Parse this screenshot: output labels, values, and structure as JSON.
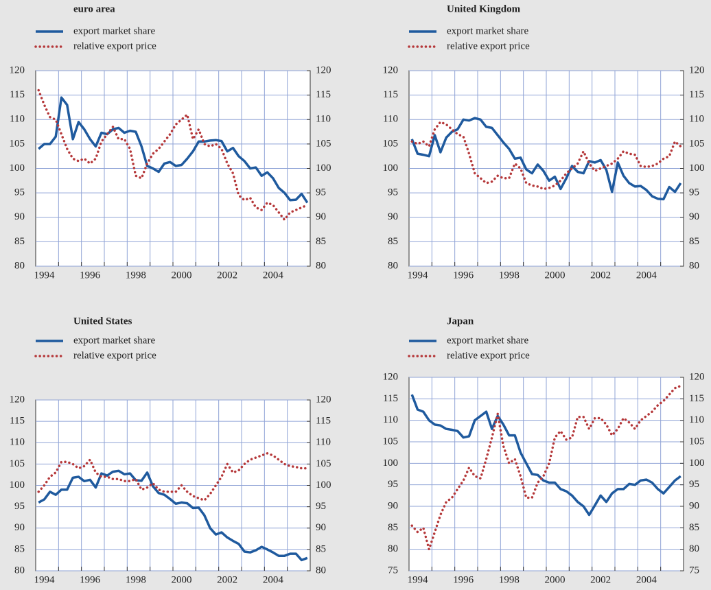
{
  "chart_data": [
    {
      "type": "line",
      "title": "euro area",
      "categories": [
        null,
        "1994",
        null,
        null,
        null,
        null,
        null,
        null,
        null,
        "1996",
        null,
        null,
        null,
        null,
        null,
        null,
        null,
        "1998",
        null,
        null,
        null,
        null,
        null,
        null,
        null,
        "2000",
        null,
        null,
        null,
        null,
        null,
        null,
        null,
        "2002",
        null,
        null,
        null,
        null,
        null,
        null,
        null,
        "2004",
        null,
        null,
        null,
        null,
        null,
        null
      ],
      "series": [
        {
          "name": "export market share",
          "color": "#1f5a9e",
          "style": "solid",
          "values": [
            104,
            105,
            105,
            106.5,
            114.5,
            113,
            106,
            109.5,
            108,
            106,
            104.5,
            107.3,
            107,
            108,
            108.3,
            107.3,
            107.7,
            107.5,
            104.5,
            100.5,
            100,
            99.3,
            101,
            101.3,
            100.5,
            100.7,
            102,
            103.5,
            105.5,
            105.5,
            105.7,
            105.8,
            105.6,
            103.5,
            104.2,
            102.5,
            101.5,
            100,
            100.2,
            98.5,
            99.2,
            98,
            96,
            95,
            93.5,
            93.6,
            94.8,
            93
          ]
        },
        {
          "name": "relative export price",
          "color": "#b5383a",
          "style": "dotted",
          "values": [
            116,
            113,
            110.5,
            110,
            107,
            104,
            102,
            101.5,
            102,
            101,
            102,
            105.5,
            107,
            108.5,
            106,
            106,
            104,
            98.5,
            98,
            101,
            103,
            104,
            105.5,
            107,
            109,
            110,
            111,
            106,
            108,
            105,
            104.5,
            105,
            104,
            101,
            99,
            94.5,
            93.5,
            94,
            92,
            91.5,
            93,
            92.5,
            91,
            89.5,
            91,
            91.5,
            92,
            92.5
          ]
        }
      ],
      "ylim": [
        80,
        120
      ],
      "yticks": [
        80,
        85,
        90,
        95,
        100,
        105,
        110,
        115,
        120
      ],
      "y2lim": [
        80,
        120
      ],
      "y2ticks": [
        80,
        85,
        90,
        95,
        100,
        105,
        110,
        115,
        120
      ],
      "grid": true
    },
    {
      "type": "line",
      "title": "United Kingdom",
      "categories": [
        null,
        "1994",
        null,
        null,
        null,
        null,
        null,
        null,
        null,
        "1996",
        null,
        null,
        null,
        null,
        null,
        null,
        null,
        "1998",
        null,
        null,
        null,
        null,
        null,
        null,
        null,
        "2000",
        null,
        null,
        null,
        null,
        null,
        null,
        null,
        "2002",
        null,
        null,
        null,
        null,
        null,
        null,
        null,
        "2004",
        null,
        null,
        null,
        null,
        null,
        null
      ],
      "series": [
        {
          "name": "export market share",
          "color": "#1f5a9e",
          "style": "solid",
          "values": [
            106,
            103,
            102.8,
            102.5,
            106.8,
            103.3,
            106.3,
            107.5,
            108,
            110,
            109.8,
            110.3,
            110,
            108.5,
            108.3,
            106.8,
            105.3,
            104,
            102,
            102.2,
            99.8,
            99,
            100.8,
            99.5,
            97.5,
            98.3,
            95.8,
            98,
            100.5,
            99.3,
            99,
            101.5,
            101.2,
            101.7,
            99.7,
            95.2,
            101.2,
            98.5,
            97,
            96.3,
            96.4,
            95.6,
            94.3,
            93.8,
            93.7,
            96.2,
            95.2,
            97
          ]
        },
        {
          "name": "relative export price",
          "color": "#b5383a",
          "style": "dotted",
          "values": [
            105.5,
            105,
            105.5,
            104.5,
            108,
            109.5,
            109,
            108,
            107,
            106.5,
            103,
            99,
            98,
            97,
            97.3,
            98.5,
            98,
            98,
            101,
            100,
            97,
            96.5,
            96.3,
            95.8,
            96,
            96.5,
            97.5,
            99,
            100,
            101,
            103.5,
            101,
            99.5,
            100,
            100.5,
            101,
            102,
            103.5,
            103,
            102.8,
            100.5,
            100.3,
            100.5,
            101,
            102,
            102.5,
            105.5,
            104.5
          ]
        }
      ],
      "ylim": [
        80,
        120
      ],
      "yticks": [
        80,
        85,
        90,
        95,
        100,
        105,
        110,
        115,
        120
      ],
      "y2lim": [
        80,
        120
      ],
      "y2ticks": [
        80,
        85,
        90,
        95,
        100,
        105,
        110,
        115,
        120
      ],
      "grid": true
    },
    {
      "type": "line",
      "title": "United States",
      "categories": [
        null,
        "1994",
        null,
        null,
        null,
        null,
        null,
        null,
        null,
        "1996",
        null,
        null,
        null,
        null,
        null,
        null,
        null,
        "1998",
        null,
        null,
        null,
        null,
        null,
        null,
        null,
        "2000",
        null,
        null,
        null,
        null,
        null,
        null,
        null,
        "2002",
        null,
        null,
        null,
        null,
        null,
        null,
        null,
        "2004",
        null,
        null,
        null,
        null,
        null,
        null
      ],
      "series": [
        {
          "name": "export market share",
          "color": "#1f5a9e",
          "style": "solid",
          "values": [
            96,
            96.7,
            98.5,
            97.8,
            99,
            99,
            101.8,
            102,
            101,
            101.3,
            99.5,
            102.8,
            102.3,
            103.2,
            103.4,
            102.6,
            102.8,
            101.2,
            101.1,
            103,
            99.8,
            98.2,
            97.8,
            96.8,
            95.7,
            96,
            95.8,
            94.7,
            94.8,
            93,
            90,
            88.5,
            89,
            87.8,
            87,
            86.3,
            84.5,
            84.3,
            84.8,
            85.6,
            85,
            84.3,
            83.5,
            83.5,
            84,
            84,
            82.5,
            83
          ]
        },
        {
          "name": "relative export price",
          "color": "#b5383a",
          "style": "dotted",
          "values": [
            98.5,
            100,
            102,
            103,
            105.5,
            105.5,
            105,
            104,
            104.5,
            106,
            103,
            102,
            102,
            101.5,
            101.5,
            101,
            101,
            101.5,
            99,
            99.5,
            100.5,
            99,
            98.5,
            98.5,
            98.5,
            100,
            98.5,
            97.5,
            97,
            96.5,
            98,
            100,
            102,
            105,
            103,
            103.5,
            105,
            106,
            106.5,
            107,
            107.5,
            107,
            106,
            105,
            104.5,
            104.3,
            104,
            104
          ]
        }
      ],
      "ylim": [
        80,
        120
      ],
      "yticks": [
        80,
        85,
        90,
        95,
        100,
        105,
        110,
        115,
        120
      ],
      "y2lim": [
        80,
        120
      ],
      "y2ticks": [
        80,
        85,
        90,
        95,
        100,
        105,
        110,
        115,
        120
      ],
      "grid": true
    },
    {
      "type": "line",
      "title": "Japan",
      "categories": [
        null,
        "1994",
        null,
        null,
        null,
        null,
        null,
        null,
        null,
        "1996",
        null,
        null,
        null,
        null,
        null,
        null,
        null,
        "1998",
        null,
        null,
        null,
        null,
        null,
        null,
        null,
        "2000",
        null,
        null,
        null,
        null,
        null,
        null,
        null,
        "2002",
        null,
        null,
        null,
        null,
        null,
        null,
        null,
        "2004",
        null,
        null,
        null,
        null,
        null,
        null
      ],
      "series": [
        {
          "name": "export market share",
          "color": "#1f5a9e",
          "style": "solid",
          "values": [
            116,
            112.5,
            112,
            110,
            109,
            108.8,
            108,
            107.8,
            107.5,
            106,
            106.3,
            110,
            111,
            112,
            108,
            111,
            109,
            106.5,
            106.5,
            102.5,
            100,
            97.5,
            97.3,
            96,
            95.5,
            95.5,
            94,
            93.5,
            92.5,
            91,
            90,
            88,
            90.2,
            92.5,
            91,
            93,
            94,
            94,
            95.2,
            95,
            96,
            96.2,
            95.5,
            94,
            93,
            94.5,
            96,
            97
          ]
        },
        {
          "name": "relative export price",
          "color": "#b5383a",
          "style": "dotted",
          "values": [
            85.5,
            84,
            85,
            80,
            84,
            88,
            91,
            92,
            94,
            96,
            99,
            97,
            96.5,
            101,
            106,
            111.5,
            104,
            100,
            101,
            97,
            92,
            92,
            95.5,
            97,
            100,
            106,
            107.5,
            105.5,
            106,
            110.8,
            110.8,
            108,
            110.5,
            110.5,
            109,
            106.5,
            108,
            110.5,
            109.5,
            108,
            110,
            111,
            112,
            113.5,
            114.5,
            116,
            117.5,
            118
          ]
        }
      ],
      "ylim": [
        75,
        120
      ],
      "yticks": [
        75,
        80,
        85,
        90,
        95,
        100,
        105,
        110,
        115,
        120
      ],
      "y2lim": [
        75,
        120
      ],
      "y2ticks": [
        75,
        80,
        85,
        90,
        95,
        100,
        105,
        110,
        115,
        120
      ],
      "grid": true
    }
  ]
}
